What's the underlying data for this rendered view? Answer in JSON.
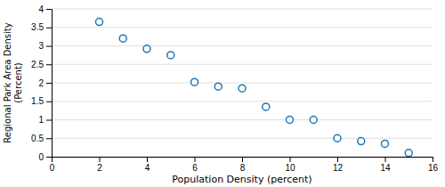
{
  "chart_data": {
    "type": "scatter",
    "xlabel": "Population Density (percent)",
    "ylabel": "Regional Park Area Density\n(Percent)",
    "x": [
      2,
      3,
      4,
      5,
      6,
      7,
      8,
      9,
      10,
      11,
      12,
      13,
      14,
      15
    ],
    "values": [
      3.65,
      3.2,
      2.92,
      2.75,
      2.02,
      1.9,
      1.85,
      1.35,
      1.0,
      1.0,
      0.5,
      0.42,
      0.35,
      0.1
    ],
    "xlim": [
      0,
      16
    ],
    "ylim": [
      0,
      4
    ],
    "xticks": [
      0,
      2,
      4,
      6,
      8,
      10,
      12,
      14,
      16
    ],
    "yticks": [
      0,
      0.5,
      1,
      1.5,
      2,
      2.5,
      3,
      3.5,
      4
    ],
    "marker": "circle",
    "line_style": "none",
    "grid": true
  }
}
